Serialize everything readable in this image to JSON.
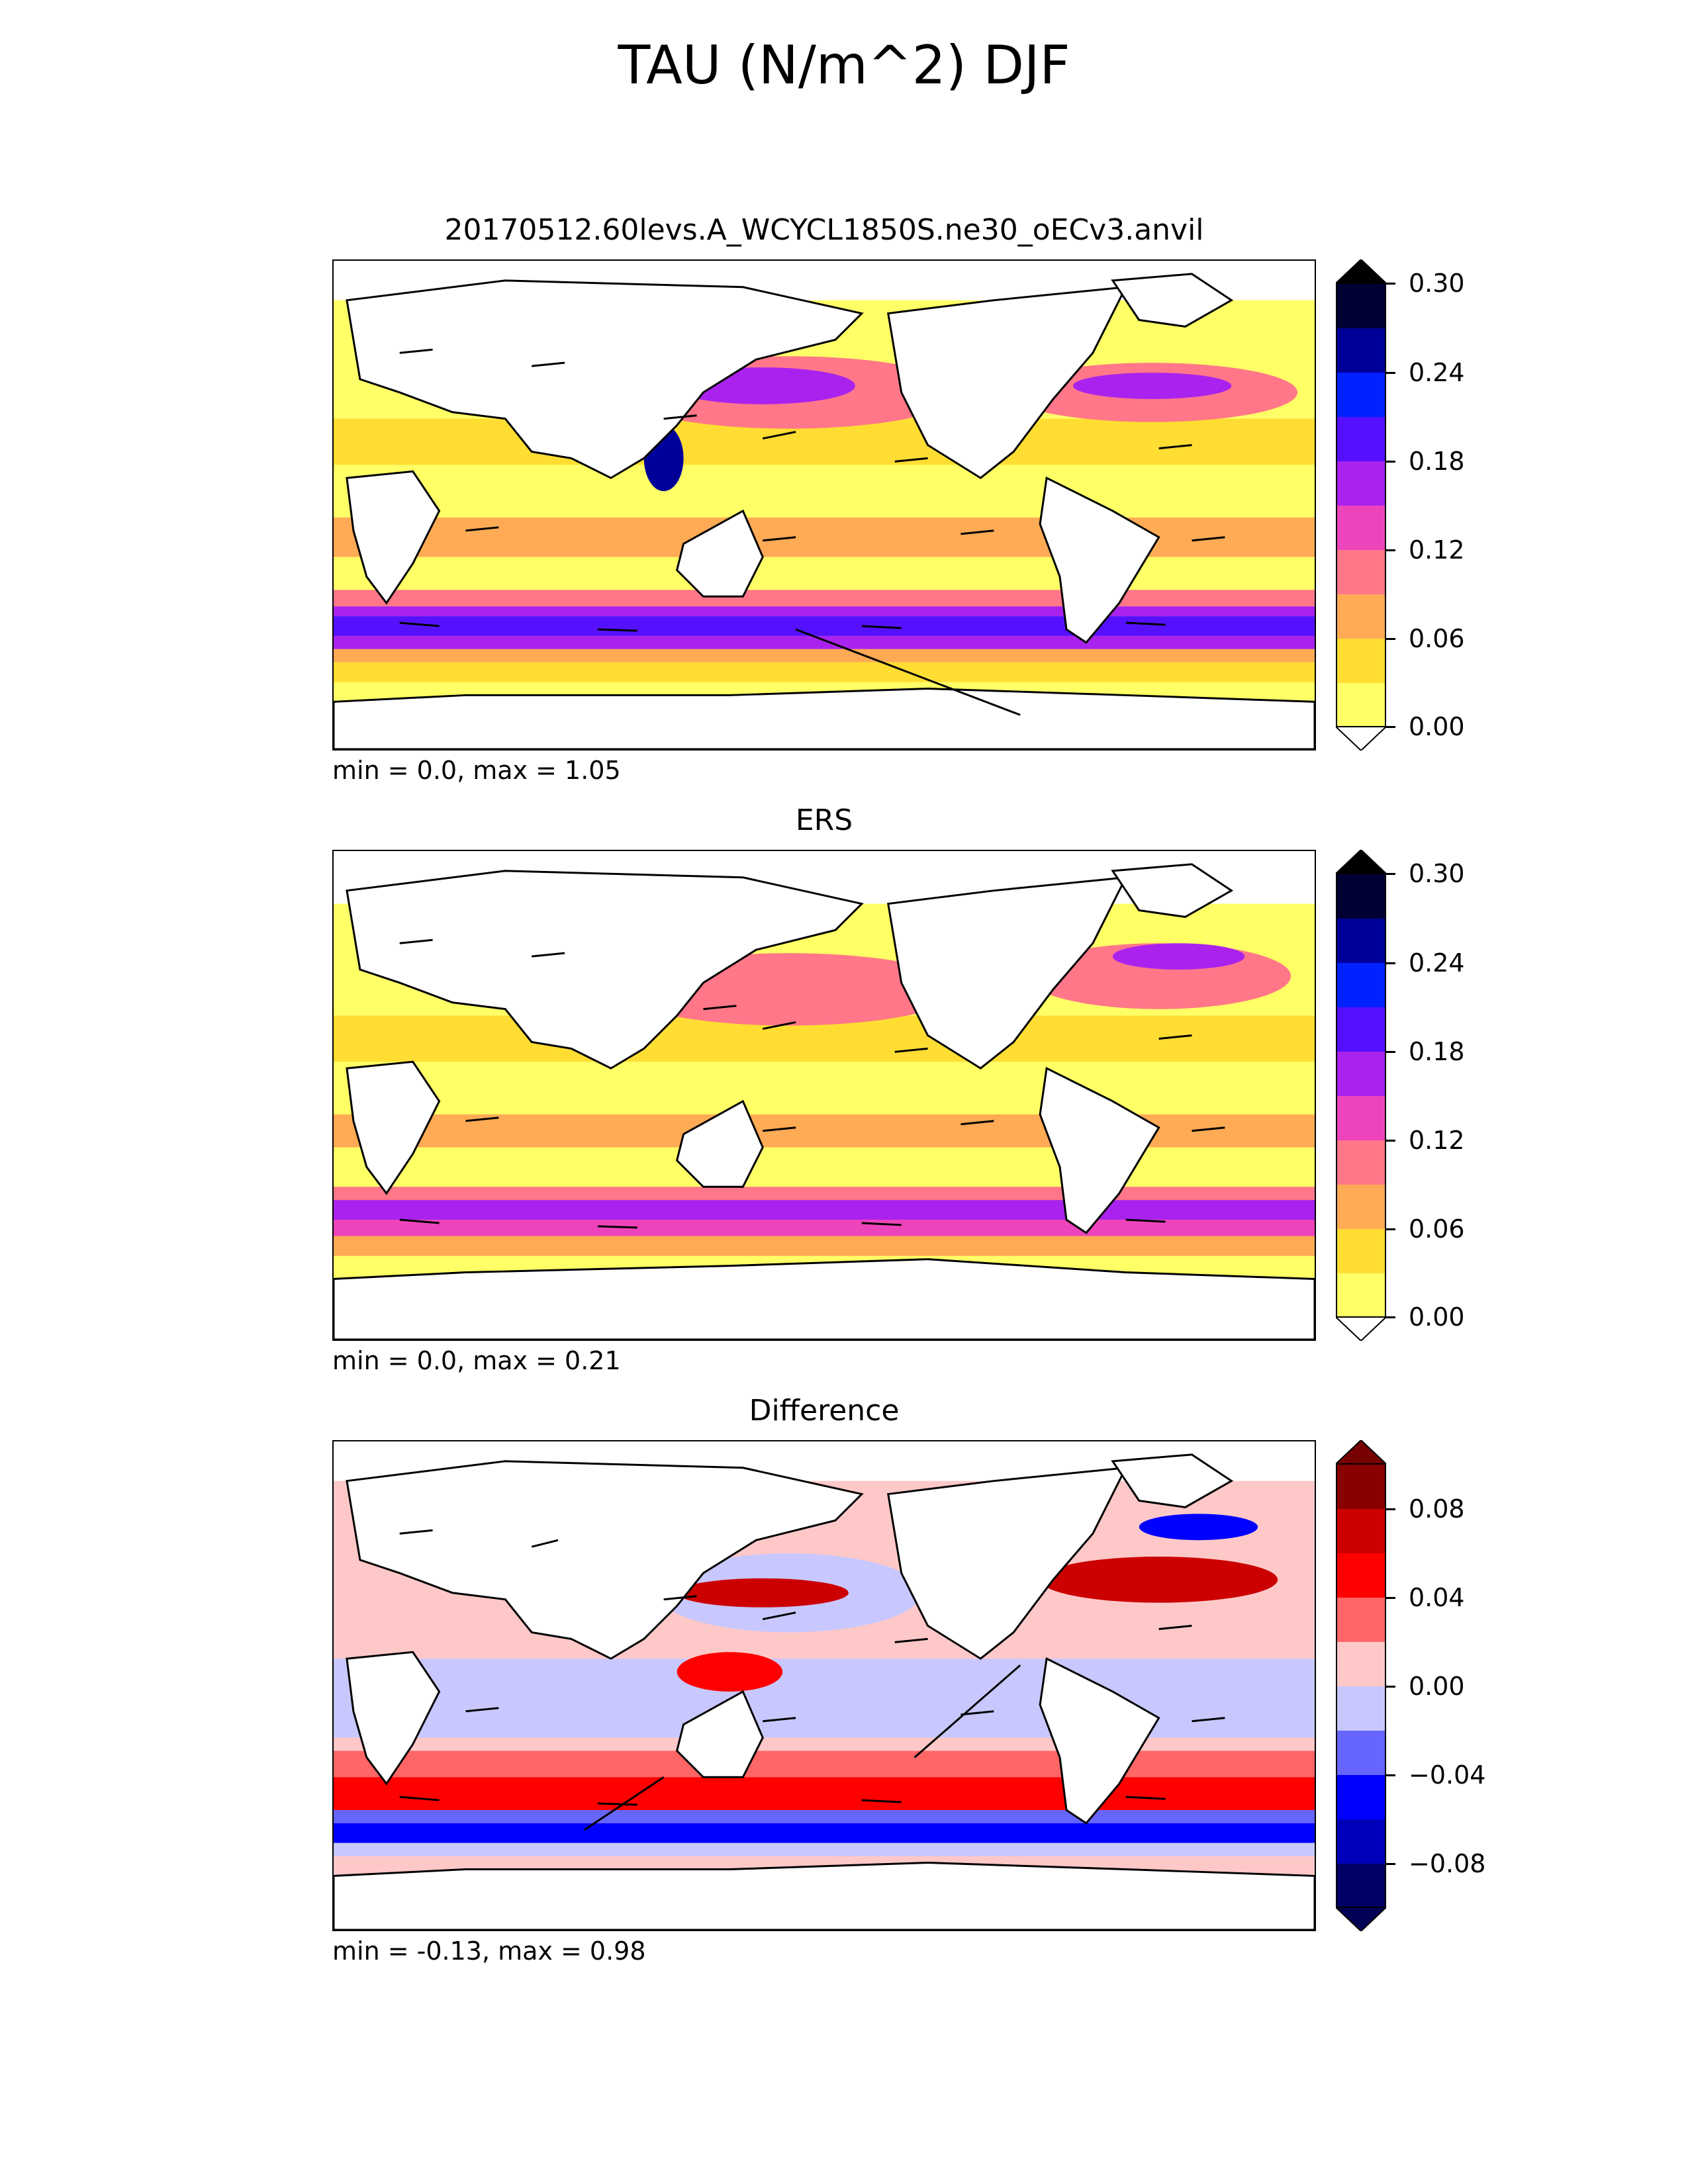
{
  "figure": {
    "title": "TAU (N/m^2) DJF"
  },
  "panels": [
    {
      "title": "20170512.60levs.A_WCYCL1850S.ne30_oECv3.anvil",
      "stats": "min = 0.0, max = 1.05"
    },
    {
      "title": "ERS",
      "stats": "min = 0.0, max = 0.21"
    },
    {
      "title": "Difference",
      "stats": "min = -0.13, max = 0.98"
    }
  ],
  "colorbars": {
    "magnitude": {
      "ticks": [
        "0.00",
        "0.06",
        "0.12",
        "0.18",
        "0.24",
        "0.30"
      ],
      "levels": [
        0,
        0.03,
        0.06,
        0.09,
        0.12,
        0.15,
        0.18,
        0.21,
        0.24,
        0.27,
        0.3
      ],
      "colors": [
        "#ffff66",
        "#ffdd33",
        "#ffaa55",
        "#ff7788",
        "#ee44bb",
        "#aa22ee",
        "#5511ff",
        "#0022ff",
        "#000099",
        "#000033"
      ],
      "over_color": "#000000",
      "under_color": "#ffffff"
    },
    "difference": {
      "ticks": [
        "0.08",
        "0.04",
        "0.00",
        "−0.04",
        "−0.08"
      ],
      "levels": [
        -0.1,
        -0.08,
        -0.06,
        -0.04,
        -0.02,
        0,
        0.02,
        0.04,
        0.06,
        0.08,
        0.1
      ],
      "colors": [
        "#000066",
        "#0000bb",
        "#0000ff",
        "#6666ff",
        "#c8c8ff",
        "#ffc8c8",
        "#ff6666",
        "#ff0000",
        "#cc0000",
        "#880000"
      ],
      "over_color": "#770000",
      "under_color": "#000055"
    }
  }
}
